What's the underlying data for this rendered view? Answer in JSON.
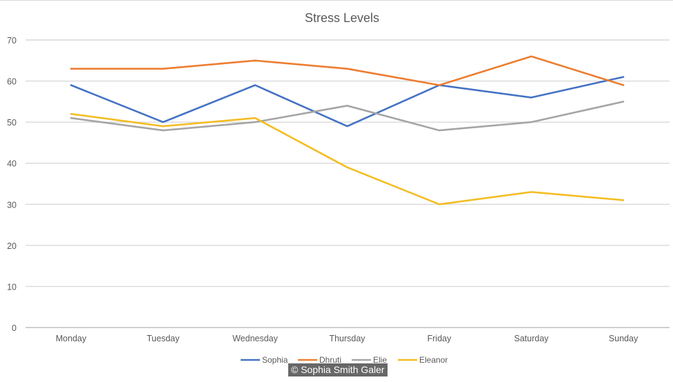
{
  "chart_data": {
    "type": "line",
    "title": "Stress Levels",
    "categories": [
      "Monday",
      "Tuesday",
      "Wednesday",
      "Thursday",
      "Friday",
      "Saturday",
      "Sunday"
    ],
    "ylim": [
      0,
      70
    ],
    "yticks": [
      0,
      10,
      20,
      30,
      40,
      50,
      60,
      70
    ],
    "grid": true,
    "legend": "bottom",
    "series": [
      {
        "name": "Sophia",
        "color": "#4472c4",
        "values": [
          59,
          50,
          59,
          49,
          59,
          56,
          61
        ]
      },
      {
        "name": "Dhruti",
        "color": "#ed7d31",
        "values": [
          63,
          63,
          65,
          63,
          59,
          66,
          59
        ]
      },
      {
        "name": "Elie",
        "color": "#a5a5a5",
        "values": [
          51,
          48,
          50,
          54,
          48,
          50,
          55
        ]
      },
      {
        "name": "Eleanor",
        "color": "#f4bd24",
        "values": [
          52,
          49,
          51,
          39,
          30,
          33,
          31
        ]
      }
    ]
  },
  "credit": "© Sophia Smith Galer"
}
